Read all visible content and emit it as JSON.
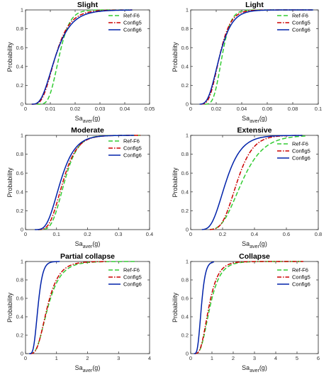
{
  "chart_data": [
    {
      "type": "line",
      "title": "Slight",
      "xlim": [
        0,
        0.05
      ],
      "ylim": [
        0,
        1
      ],
      "xticks": [
        0,
        0.01,
        0.02,
        0.03,
        0.04,
        0.05
      ],
      "yticks": [
        0,
        0.2,
        0.4,
        0.6,
        0.8,
        1
      ],
      "xtick_labels": [
        "0",
        "0.01",
        "0.02",
        "0.03",
        "0.04",
        "0.05"
      ],
      "ytick_labels": [
        "0",
        "0.2",
        "0.4",
        "0.6",
        "0.8",
        "1"
      ],
      "xlabel_main": "Sa",
      "xlabel_sub": "aver",
      "xlabel_tail": "(g)",
      "ylabel": "Probability",
      "legend": "top-right",
      "series": [
        {
          "name": "Ref-F6",
          "style": "dashed",
          "color": "#33cc33",
          "median": 0.0135,
          "beta": 0.25,
          "xmin": 0.0045,
          "xmax": 0.043
        },
        {
          "name": "Config5",
          "style": "dashdot",
          "color": "#cc0000",
          "median": 0.012,
          "beta": 0.38,
          "xmin": 0.0025,
          "xmax": 0.043
        },
        {
          "name": "Config6",
          "style": "solid",
          "color": "#0022aa",
          "median": 0.012,
          "beta": 0.42,
          "xmin": 0.0025,
          "xmax": 0.043
        }
      ]
    },
    {
      "type": "line",
      "title": "Light",
      "xlim": [
        0,
        0.1
      ],
      "ylim": [
        0,
        1
      ],
      "xticks": [
        0,
        0.02,
        0.04,
        0.06,
        0.08,
        0.1
      ],
      "yticks": [
        0,
        0.2,
        0.4,
        0.6,
        0.8,
        1
      ],
      "xtick_labels": [
        "0",
        "0.02",
        "0.04",
        "0.06",
        "0.08",
        "0.1"
      ],
      "ytick_labels": [
        "0",
        "0.2",
        "0.4",
        "0.6",
        "0.8",
        "1"
      ],
      "xlabel_main": "Sa",
      "xlabel_sub": "aver",
      "xlabel_tail": "(g)",
      "ylabel": "Probability",
      "legend": "top-right",
      "series": [
        {
          "name": "Ref-F6",
          "style": "dashed",
          "color": "#33cc33",
          "median": 0.0245,
          "beta": 0.22,
          "xmin": 0.011,
          "xmax": 0.096
        },
        {
          "name": "Config5",
          "style": "dashdot",
          "color": "#cc0000",
          "median": 0.0225,
          "beta": 0.3,
          "xmin": 0.008,
          "xmax": 0.096
        },
        {
          "name": "Config6",
          "style": "solid",
          "color": "#0022aa",
          "median": 0.0225,
          "beta": 0.34,
          "xmin": 0.007,
          "xmax": 0.096
        }
      ]
    },
    {
      "type": "line",
      "title": "Moderate",
      "xlim": [
        0,
        0.4
      ],
      "ylim": [
        0,
        1
      ],
      "xticks": [
        0,
        0.1,
        0.2,
        0.3,
        0.4
      ],
      "yticks": [
        0,
        0.2,
        0.4,
        0.6,
        0.8,
        1
      ],
      "xtick_labels": [
        "0",
        "0.1",
        "0.2",
        "0.3",
        "0.4"
      ],
      "ytick_labels": [
        "0",
        "0.2",
        "0.4",
        "0.6",
        "0.8",
        "1"
      ],
      "xlabel_main": "Sa",
      "xlabel_sub": "aver",
      "xlabel_tail": "(g)",
      "ylabel": "Probability",
      "legend": "top-right",
      "series": [
        {
          "name": "Ref-F6",
          "style": "dashed",
          "color": "#33cc33",
          "median": 0.125,
          "beta": 0.27,
          "xmin": 0.04,
          "xmax": 0.37
        },
        {
          "name": "Config5",
          "style": "dashdot",
          "color": "#cc0000",
          "median": 0.12,
          "beta": 0.3,
          "xmin": 0.04,
          "xmax": 0.37
        },
        {
          "name": "Config6",
          "style": "solid",
          "color": "#0022aa",
          "median": 0.112,
          "beta": 0.33,
          "xmin": 0.03,
          "xmax": 0.35
        }
      ]
    },
    {
      "type": "line",
      "title": "Extensive",
      "xlim": [
        0,
        0.8
      ],
      "ylim": [
        0,
        1
      ],
      "xticks": [
        0,
        0.2,
        0.4,
        0.6,
        0.8
      ],
      "yticks": [
        0,
        0.2,
        0.4,
        0.6,
        0.8,
        1
      ],
      "xtick_labels": [
        "0",
        "0.2",
        "0.4",
        "0.6",
        "0.8"
      ],
      "ytick_labels": [
        "0",
        "0.2",
        "0.4",
        "0.6",
        "0.8",
        "1"
      ],
      "xlabel_main": "Sa",
      "xlabel_sub": "aver",
      "xlabel_tail": "(g)",
      "ylabel": "Probability",
      "legend": "right",
      "series": [
        {
          "name": "Ref-F6",
          "style": "dashed",
          "color": "#33cc33",
          "median": 0.32,
          "beta": 0.33,
          "xmin": 0.12,
          "xmax": 0.73
        },
        {
          "name": "Config5",
          "style": "dashdot",
          "color": "#cc0000",
          "median": 0.29,
          "beta": 0.27,
          "xmin": 0.12,
          "xmax": 0.7
        },
        {
          "name": "Config6",
          "style": "solid",
          "color": "#0022aa",
          "median": 0.22,
          "beta": 0.35,
          "xmin": 0.07,
          "xmax": 0.7
        }
      ]
    },
    {
      "type": "line",
      "title": "Partial collapse",
      "xlim": [
        0,
        4
      ],
      "ylim": [
        0,
        1
      ],
      "xticks": [
        0,
        1,
        2,
        3,
        4
      ],
      "yticks": [
        0,
        0.2,
        0.4,
        0.6,
        0.8,
        1
      ],
      "xtick_labels": [
        "0",
        "1",
        "2",
        "3",
        "4"
      ],
      "ytick_labels": [
        "0",
        "0.2",
        "0.4",
        "0.6",
        "0.8",
        "1"
      ],
      "xlabel_main": "Sa",
      "xlabel_sub": "aver",
      "xlabel_tail": "(g)",
      "ylabel": "Probability",
      "legend": "right",
      "series": [
        {
          "name": "Ref-F6",
          "style": "dashed",
          "color": "#33cc33",
          "median": 0.72,
          "beta": 0.45,
          "xmin": 0.15,
          "xmax": 3.6
        },
        {
          "name": "Config5",
          "style": "dashdot",
          "color": "#cc0000",
          "median": 0.7,
          "beta": 0.42,
          "xmin": 0.15,
          "xmax": 2.6
        },
        {
          "name": "Config6",
          "style": "solid",
          "color": "#0022aa",
          "median": 0.4,
          "beta": 0.3,
          "xmin": 0.12,
          "xmax": 1.1
        }
      ]
    },
    {
      "type": "line",
      "title": "Collapse",
      "xlim": [
        0,
        6
      ],
      "ylim": [
        0,
        1
      ],
      "xticks": [
        0,
        1,
        2,
        3,
        4,
        5,
        6
      ],
      "yticks": [
        0,
        0.2,
        0.4,
        0.6,
        0.8,
        1
      ],
      "xtick_labels": [
        "0",
        "1",
        "2",
        "3",
        "4",
        "5",
        "6"
      ],
      "ytick_labels": [
        "0",
        "0.2",
        "0.4",
        "0.6",
        "0.8",
        "1"
      ],
      "xlabel_main": "Sa",
      "xlabel_sub": "aver",
      "xlabel_tail": "(g)",
      "ylabel": "Probability",
      "legend": "right",
      "series": [
        {
          "name": "Ref-F6",
          "style": "dashed",
          "color": "#33cc33",
          "median": 0.9,
          "beta": 0.42,
          "xmin": 0.2,
          "xmax": 5.3
        },
        {
          "name": "Config5",
          "style": "dashdot",
          "color": "#cc0000",
          "median": 0.85,
          "beta": 0.4,
          "xmin": 0.2,
          "xmax": 5.3
        },
        {
          "name": "Config6",
          "style": "solid",
          "color": "#0022aa",
          "median": 0.5,
          "beta": 0.3,
          "xmin": 0.15,
          "xmax": 1.1
        }
      ]
    }
  ]
}
